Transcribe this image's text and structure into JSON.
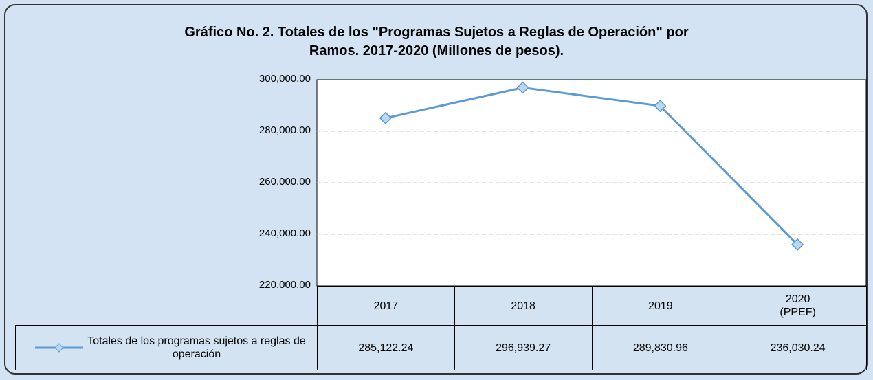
{
  "chart_data": {
    "type": "line",
    "title": "Gráfico No. 2. Totales de los \"Programas Sujetos a Reglas de Operación\" por\nRamos. 2017-2020 (Millones de pesos).",
    "categories": [
      "2017",
      "2018",
      "2019",
      "2020\n(PPEF)"
    ],
    "series": [
      {
        "name": "Totales de los programas sujetos a reglas de operación",
        "color": "#5b9bd5",
        "marker_color": "#bdd7ee",
        "values": [
          285122.24,
          296939.27,
          289830.96,
          236030.24
        ],
        "value_labels": [
          "285,122.24",
          "296,939.27",
          "289,830.96",
          "236,030.24"
        ]
      }
    ],
    "ylim": [
      220000,
      300000
    ],
    "yticks": [
      {
        "value": 220000,
        "label": "220,000.00"
      },
      {
        "value": 240000,
        "label": "240,000.00"
      },
      {
        "value": 260000,
        "label": "260,000.00"
      },
      {
        "value": 280000,
        "label": "280,000.00"
      },
      {
        "value": 300000,
        "label": "300,000.00"
      }
    ],
    "grid": true
  }
}
